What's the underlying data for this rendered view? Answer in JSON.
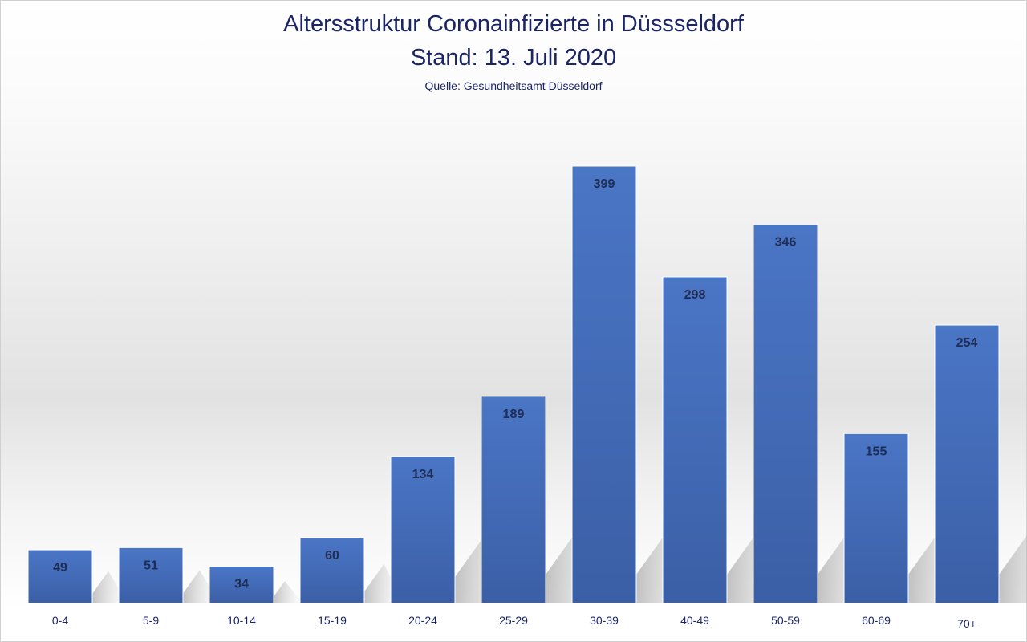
{
  "chart_data": {
    "type": "bar",
    "title": "Altersstruktur Coronainfizierte in Düsssseldorf",
    "subtitle": "Stand: 13. Juli 2020",
    "source": "Quelle: Gesundheitsamt Düsseldorf",
    "categories": [
      "0-4",
      "5-9",
      "10-14",
      "15-19",
      "20-24",
      "25-29",
      "30-39",
      "40-49",
      "50-59",
      "60-69",
      "70+"
    ],
    "values": [
      49,
      51,
      34,
      60,
      134,
      189,
      399,
      298,
      346,
      155,
      254
    ],
    "xlabel": "",
    "ylabel": "",
    "ylim": [
      0,
      420
    ],
    "grid": false,
    "colors": {
      "bar_top": "#4a76c6",
      "bar_bottom": "#3b5fa6",
      "label": "#1f2d55",
      "title": "#1b2465"
    }
  }
}
